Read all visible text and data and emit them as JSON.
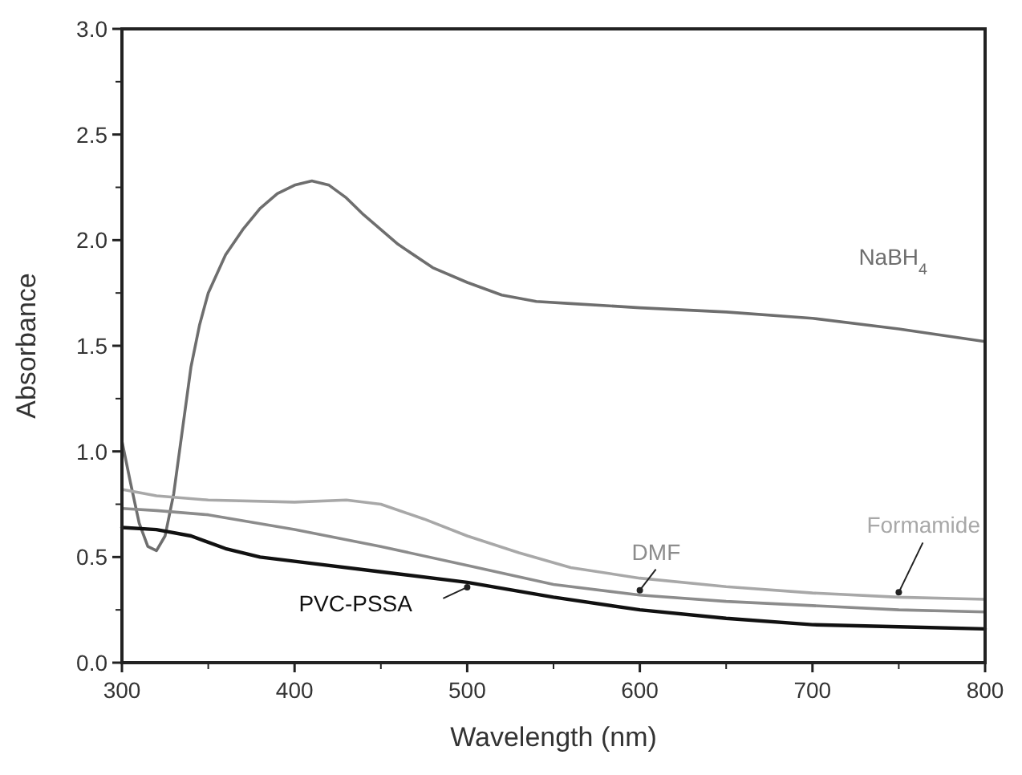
{
  "chart_data": {
    "type": "line",
    "xlabel": "Wavelength (nm)",
    "ylabel": "Absorbance",
    "xlim": [
      300,
      800
    ],
    "ylim": [
      0,
      3.0
    ],
    "xticks": [
      300,
      400,
      500,
      600,
      700,
      800
    ],
    "yticks": [
      {
        "value": 0,
        "label": "0.0"
      },
      0.5,
      {
        "value": 1,
        "label": "1.0"
      },
      1.5,
      {
        "value": 2,
        "label": "2.0"
      },
      2.5,
      {
        "value": 3,
        "label": "3.0"
      }
    ],
    "grid": false,
    "marker": "none",
    "line_style": "solid",
    "series": [
      {
        "name": "NaBH$_{4}$",
        "color": "#6e6e6e",
        "x": [
          300,
          305,
          310,
          315,
          320,
          325,
          330,
          335,
          340,
          345,
          350,
          360,
          370,
          380,
          390,
          400,
          410,
          420,
          430,
          440,
          460,
          480,
          500,
          520,
          540,
          560,
          600,
          650,
          700,
          750,
          800
        ],
        "values": [
          1.05,
          0.85,
          0.66,
          0.55,
          0.53,
          0.6,
          0.8,
          1.1,
          1.4,
          1.6,
          1.75,
          1.93,
          2.05,
          2.15,
          2.22,
          2.26,
          2.28,
          2.26,
          2.2,
          2.12,
          1.98,
          1.87,
          1.8,
          1.74,
          1.71,
          1.7,
          1.68,
          1.66,
          1.63,
          1.58,
          1.52
        ]
      },
      {
        "name": "Formamide",
        "color": "#a8a8a8",
        "x": [
          300,
          320,
          350,
          400,
          430,
          450,
          475,
          500,
          530,
          560,
          600,
          650,
          700,
          750,
          800
        ],
        "values": [
          0.82,
          0.79,
          0.77,
          0.76,
          0.77,
          0.75,
          0.68,
          0.6,
          0.52,
          0.45,
          0.4,
          0.36,
          0.33,
          0.31,
          0.3
        ]
      },
      {
        "name": "DMF",
        "color": "#8c8c8c",
        "x": [
          300,
          320,
          350,
          400,
          450,
          500,
          550,
          600,
          650,
          700,
          750,
          800
        ],
        "values": [
          0.73,
          0.72,
          0.7,
          0.63,
          0.55,
          0.46,
          0.37,
          0.32,
          0.29,
          0.27,
          0.25,
          0.24
        ]
      },
      {
        "name": "PVC-PSSA",
        "color": "#111111",
        "x": [
          300,
          320,
          340,
          360,
          380,
          400,
          450,
          500,
          550,
          600,
          650,
          700,
          750,
          800
        ],
        "values": [
          0.64,
          0.63,
          0.6,
          0.54,
          0.5,
          0.48,
          0.43,
          0.38,
          0.31,
          0.25,
          0.21,
          0.18,
          0.17,
          0.16
        ]
      }
    ]
  }
}
